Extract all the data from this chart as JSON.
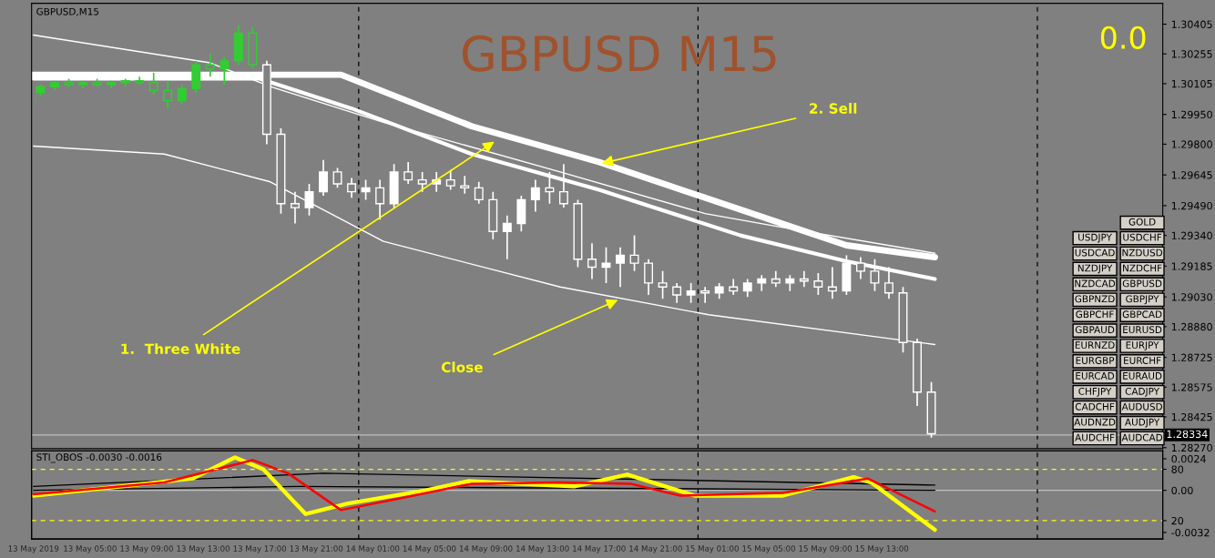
{
  "chart_data": [
    {
      "type": "candlestick",
      "title": "GBPUSD M15",
      "subtitle": "GBPUSD,M15",
      "x": [
        "2019-05-13T01:30",
        "2019-05-13T02:30",
        "2019-05-13T03:30",
        "2019-05-13T04:30",
        "2019-05-13T05:30",
        "2019-05-13T06:30",
        "2019-05-13T07:30",
        "2019-05-13T08:30",
        "2019-05-13T09:30",
        "2019-05-13T10:30",
        "2019-05-13T11:30",
        "2019-05-13T12:30",
        "2019-05-13T13:30",
        "2019-05-13T14:30",
        "2019-05-13T15:30",
        "2019-05-13T16:30",
        "2019-05-13T17:30",
        "2019-05-13T18:30",
        "2019-05-13T19:30",
        "2019-05-13T20:30",
        "2019-05-13T21:30",
        "2019-05-13T22:30",
        "2019-05-13T23:30",
        "2019-05-14T00:30",
        "2019-05-14T01:30",
        "2019-05-14T02:30",
        "2019-05-14T03:30",
        "2019-05-14T04:30",
        "2019-05-14T05:30",
        "2019-05-14T06:30",
        "2019-05-14T07:30",
        "2019-05-14T08:30",
        "2019-05-14T09:30",
        "2019-05-14T10:30",
        "2019-05-14T11:30",
        "2019-05-14T12:30",
        "2019-05-14T13:30",
        "2019-05-14T14:30",
        "2019-05-14T15:30",
        "2019-05-14T16:30",
        "2019-05-14T17:30",
        "2019-05-14T18:30",
        "2019-05-14T19:30",
        "2019-05-14T20:30",
        "2019-05-14T21:30",
        "2019-05-14T22:30",
        "2019-05-14T23:30",
        "2019-05-15T00:30",
        "2019-05-15T01:30",
        "2019-05-15T02:30",
        "2019-05-15T03:30",
        "2019-05-15T04:30",
        "2019-05-15T05:30",
        "2019-05-15T06:30",
        "2019-05-15T07:30",
        "2019-05-15T08:30",
        "2019-05-15T09:30",
        "2019-05-15T10:30",
        "2019-05-15T11:30",
        "2019-05-15T12:30",
        "2019-05-15T13:30",
        "2019-05-15T14:30",
        "2019-05-15T15:30",
        "2019-05-15T16:30"
      ],
      "ohlc": [
        [
          1.3006,
          1.301,
          1.3004,
          1.3009
        ],
        [
          1.3009,
          1.3012,
          1.3007,
          1.3011
        ],
        [
          1.3011,
          1.3013,
          1.3009,
          1.301
        ],
        [
          1.301,
          1.3012,
          1.3008,
          1.3011
        ],
        [
          1.3011,
          1.3013,
          1.3009,
          1.301
        ],
        [
          1.301,
          1.3012,
          1.3008,
          1.3011
        ],
        [
          1.3011,
          1.3013,
          1.3009,
          1.3012
        ],
        [
          1.3012,
          1.3014,
          1.301,
          1.3011
        ],
        [
          1.3011,
          1.3016,
          1.3005,
          1.3007
        ],
        [
          1.3007,
          1.3012,
          1.2998,
          1.3002
        ],
        [
          1.3002,
          1.301,
          1.3,
          1.3008
        ],
        [
          1.3008,
          1.3022,
          1.3006,
          1.302
        ],
        [
          1.302,
          1.3026,
          1.3014,
          1.3018
        ],
        [
          1.3018,
          1.3024,
          1.301,
          1.3022
        ],
        [
          1.3022,
          1.304,
          1.302,
          1.3036
        ],
        [
          1.3036,
          1.3039,
          1.3018,
          1.302
        ],
        [
          1.302,
          1.3022,
          1.298,
          1.2985
        ],
        [
          1.2985,
          1.2988,
          1.2945,
          1.295
        ],
        [
          1.295,
          1.2956,
          1.294,
          1.2948
        ],
        [
          1.2948,
          1.296,
          1.2944,
          1.2956
        ],
        [
          1.2956,
          1.2972,
          1.2954,
          1.2966
        ],
        [
          1.2966,
          1.2968,
          1.2958,
          1.296
        ],
        [
          1.296,
          1.2963,
          1.2953,
          1.2956
        ],
        [
          1.2956,
          1.2962,
          1.2952,
          1.2958
        ],
        [
          1.2958,
          1.2962,
          1.2942,
          1.295
        ],
        [
          1.295,
          1.297,
          1.2948,
          1.2966
        ],
        [
          1.2966,
          1.2971,
          1.296,
          1.2962
        ],
        [
          1.2962,
          1.2966,
          1.2956,
          1.296
        ],
        [
          1.296,
          1.2966,
          1.2956,
          1.2962
        ],
        [
          1.2962,
          1.2967,
          1.2957,
          1.2959
        ],
        [
          1.2959,
          1.2964,
          1.2955,
          1.2958
        ],
        [
          1.2958,
          1.2961,
          1.295,
          1.2952
        ],
        [
          1.2952,
          1.2956,
          1.2932,
          1.2936
        ],
        [
          1.2936,
          1.2944,
          1.2922,
          1.294
        ],
        [
          1.294,
          1.2954,
          1.2936,
          1.2952
        ],
        [
          1.2952,
          1.2962,
          1.2946,
          1.2958
        ],
        [
          1.2958,
          1.2966,
          1.295,
          1.2956
        ],
        [
          1.2956,
          1.297,
          1.2948,
          1.295
        ],
        [
          1.295,
          1.2952,
          1.2918,
          1.2922
        ],
        [
          1.2922,
          1.293,
          1.2912,
          1.2918
        ],
        [
          1.2918,
          1.2928,
          1.291,
          1.292
        ],
        [
          1.292,
          1.2928,
          1.2908,
          1.2924
        ],
        [
          1.2924,
          1.2934,
          1.2916,
          1.292
        ],
        [
          1.292,
          1.2922,
          1.2904,
          1.291
        ],
        [
          1.291,
          1.2916,
          1.2902,
          1.2908
        ],
        [
          1.2908,
          1.291,
          1.29,
          1.2904
        ],
        [
          1.2904,
          1.291,
          1.29,
          1.2906
        ],
        [
          1.2906,
          1.2908,
          1.29,
          1.2905
        ],
        [
          1.2905,
          1.291,
          1.2902,
          1.2908
        ],
        [
          1.2908,
          1.2912,
          1.2904,
          1.2906
        ],
        [
          1.2906,
          1.2912,
          1.2903,
          1.291
        ],
        [
          1.291,
          1.2914,
          1.2906,
          1.2912
        ],
        [
          1.2912,
          1.2916,
          1.2908,
          1.291
        ],
        [
          1.291,
          1.2914,
          1.2906,
          1.2912
        ],
        [
          1.2912,
          1.2916,
          1.2908,
          1.2911
        ],
        [
          1.2911,
          1.2915,
          1.2904,
          1.2908
        ],
        [
          1.2908,
          1.2918,
          1.2902,
          1.2906
        ],
        [
          1.2906,
          1.2924,
          1.2904,
          1.292
        ],
        [
          1.292,
          1.2923,
          1.2912,
          1.2916
        ],
        [
          1.2916,
          1.2922,
          1.2906,
          1.291
        ],
        [
          1.291,
          1.2918,
          1.2902,
          1.2905
        ],
        [
          1.2905,
          1.2908,
          1.2875,
          1.288
        ],
        [
          1.288,
          1.2882,
          1.2848,
          1.2855
        ],
        [
          1.2855,
          1.286,
          1.2832,
          1.2834
        ]
      ],
      "colors": [
        "#32cd32",
        "#32cd32",
        "#32cd32",
        "#32cd32",
        "#32cd32",
        "#32cd32",
        "#32cd32",
        "#32cd32",
        "#32cd32",
        "#32cd32",
        "#32cd32",
        "#32cd32",
        "#32cd32",
        "#32cd32",
        "#32cd32",
        "#32cd32",
        "#ffffff",
        "#ffffff",
        "#ffffff",
        "#ffffff",
        "#ffffff",
        "#ffffff",
        "#ffffff",
        "#ffffff",
        "#ffffff",
        "#ffffff",
        "#ffffff",
        "#ffffff",
        "#ffffff",
        "#ffffff",
        "#ffffff",
        "#ffffff",
        "#ffffff",
        "#ffffff",
        "#ffffff",
        "#ffffff",
        "#ffffff",
        "#ffffff",
        "#ffffff",
        "#ffffff",
        "#ffffff",
        "#ffffff",
        "#ffffff",
        "#ffffff",
        "#ffffff",
        "#ffffff",
        "#ffffff",
        "#ffffff",
        "#ffffff",
        "#ffffff",
        "#ffffff",
        "#ffffff",
        "#ffffff",
        "#ffffff",
        "#ffffff",
        "#ffffff",
        "#ffffff",
        "#ffffff",
        "#ffffff",
        "#ffffff",
        "#ffffff",
        "#ffffff",
        "#ffffff",
        "#ffffff"
      ],
      "series": [
        {
          "type": "line",
          "color": "#ffffff",
          "x": [
            "2019-05-13T01:00",
            "2019-05-13T22:45",
            "2019-05-14T08:00",
            "2019-05-14T17:00",
            "2019-05-15T03:00",
            "2019-05-15T10:30",
            "2019-05-15T16:45"
          ],
          "values": [
            1.3015,
            1.3015,
            1.2989,
            1.2971,
            1.2947,
            1.2929,
            1.2923
          ]
        },
        {
          "type": "line",
          "color": "#ffffff",
          "x": [
            "2019-05-13T01:00",
            "2019-05-13T17:00",
            "2019-05-13T23:30",
            "2019-05-14T08:00",
            "2019-05-14T17:00",
            "2019-05-15T03:00",
            "2019-05-15T10:30",
            "2019-05-15T16:45"
          ],
          "values": [
            1.3013,
            1.3013,
            1.2998,
            1.2975,
            1.2957,
            1.2934,
            1.2921,
            1.2912
          ]
        },
        {
          "type": "line",
          "color": "#ffffff",
          "x": [
            "2019-05-13T01:00",
            "2019-05-13T13:30",
            "2019-05-13T17:45",
            "2019-05-14T01:45",
            "2019-05-14T14:15",
            "2019-05-15T00:30",
            "2019-05-15T06:00",
            "2019-05-15T16:45"
          ],
          "values": [
            1.3035,
            1.3021,
            1.3009,
            1.2991,
            1.2966,
            1.2945,
            1.2938,
            1.2925
          ]
        },
        {
          "type": "line",
          "color": "#ffffff",
          "x": [
            "2019-05-13T01:00",
            "2019-05-13T10:15",
            "2019-05-13T17:45",
            "2019-05-14T01:45",
            "2019-05-14T14:15",
            "2019-05-15T00:45",
            "2019-05-15T16:45"
          ],
          "values": [
            1.2979,
            1.2975,
            1.2961,
            1.2931,
            1.2908,
            1.2894,
            1.2879
          ]
        }
      ],
      "xlim": [
        "2019-05-13T00:52",
        "2019-05-16T08:52"
      ],
      "ylim": [
        1.28265,
        1.3051
      ],
      "yticks": [
        {
          "value": 1.30405,
          "label": "1.30405"
        },
        {
          "value": 1.30255,
          "label": "1.30255"
        },
        {
          "value": 1.30105,
          "label": "1.30105"
        },
        {
          "value": 1.2995,
          "label": "1.29950"
        },
        {
          "value": 1.298,
          "label": "1.29800"
        },
        {
          "value": 1.29645,
          "label": "1.29645"
        },
        {
          "value": 1.2949,
          "label": "1.29490"
        },
        {
          "value": 1.2934,
          "label": "1.29340"
        },
        {
          "value": 1.29185,
          "label": "1.29185"
        },
        {
          "value": 1.2903,
          "label": "1.29030"
        },
        {
          "value": 1.2888,
          "label": "1.28880"
        },
        {
          "value": 1.28725,
          "label": "1.28725"
        },
        {
          "value": 1.28575,
          "label": "1.28575"
        },
        {
          "value": 1.28425,
          "label": "1.28425"
        },
        {
          "value": 1.2827,
          "label": "1.28270"
        }
      ],
      "tick_labels": "y",
      "ref_lines": [
        {
          "axis": "x",
          "value": "2019-05-14T00:00",
          "color": "#000000",
          "line_style": "dashed"
        },
        {
          "axis": "x",
          "value": "2019-05-15T00:00",
          "color": "#000000",
          "line_style": "dashed"
        },
        {
          "axis": "x",
          "value": "2019-05-16T00:00",
          "color": "#000000",
          "line_style": "dashed"
        },
        {
          "axis": "y",
          "value": 1.28334,
          "label": "1.28334",
          "color": "#c0c0c0"
        }
      ],
      "annotations": [
        "0.0",
        {
          "text": "2. Sell",
          "x": "2019-05-14T17:00",
          "y": 1.297
        },
        {
          "text": "1.  Three White",
          "x": "2019-05-14T09:45",
          "y": 1.2982
        },
        {
          "text": "Close",
          "x": "2019-05-14T18:30",
          "y": 1.2902
        }
      ]
    },
    {
      "type": "line",
      "title": "STI_OBOS -0.0030 -0.0016",
      "series": [
        {
          "color": "#000000",
          "x": [
            "2019-05-13T01:00",
            "2019-05-13T21:30",
            "2019-05-15T16:45"
          ],
          "values": [
            0.0003,
            0.0013,
            0.0004
          ]
        },
        {
          "color": "#000000",
          "x": [
            "2019-05-13T01:00",
            "2019-05-13T19:45",
            "2019-05-15T16:45"
          ],
          "values": [
            0.0,
            0.0003,
            0.0
          ]
        },
        {
          "color": "#ffff00",
          "x": [
            "2019-05-13T01:00",
            "2019-05-13T07:15",
            "2019-05-13T12:15",
            "2019-05-13T15:15",
            "2019-05-13T17:15",
            "2019-05-13T20:15",
            "2019-05-13T23:15",
            "2019-05-14T04:45",
            "2019-05-14T07:45",
            "2019-05-14T11:30",
            "2019-05-14T15:15",
            "2019-05-14T19:00",
            "2019-05-14T23:45",
            "2019-05-15T06:00",
            "2019-05-15T11:00",
            "2019-05-15T12:15",
            "2019-05-15T16:45"
          ],
          "values": [
            -0.0004,
            0.0003,
            0.0009,
            0.0025,
            0.0016,
            -0.0018,
            -0.001,
            0.0,
            0.0007,
            0.0005,
            0.0003,
            0.0012,
            -0.0004,
            -0.0004,
            0.001,
            0.0006,
            -0.003
          ]
        },
        {
          "color": "#ff0000",
          "x": [
            "2019-05-13T01:00",
            "2019-05-13T10:15",
            "2019-05-13T16:30",
            "2019-05-13T19:00",
            "2019-05-13T22:45",
            "2019-05-14T03:00",
            "2019-05-14T08:00",
            "2019-05-14T14:15",
            "2019-05-14T19:15",
            "2019-05-14T22:45",
            "2019-05-15T06:00",
            "2019-05-15T12:00",
            "2019-05-15T16:45"
          ],
          "values": [
            -0.0003,
            0.0006,
            0.0023,
            0.0013,
            -0.0015,
            -0.0006,
            0.0005,
            0.0006,
            0.0005,
            -0.0004,
            -0.0002,
            0.0009,
            -0.0016
          ]
        }
      ],
      "xlim": [
        "2019-05-13T00:52",
        "2019-05-16T08:52"
      ],
      "xticks": [
        {
          "value": "2019-05-13T01:00",
          "label": "13 May 2019"
        },
        {
          "value": "2019-05-13T05:00",
          "label": "13 May 05:00"
        },
        {
          "value": "2019-05-13T09:00",
          "label": "13 May 09:00"
        },
        {
          "value": "2019-05-13T13:00",
          "label": "13 May 13:00"
        },
        {
          "value": "2019-05-13T17:00",
          "label": "13 May 17:00"
        },
        {
          "value": "2019-05-13T21:00",
          "label": "13 May 21:00"
        },
        {
          "value": "2019-05-14T01:00",
          "label": "14 May 01:00"
        },
        {
          "value": "2019-05-14T05:00",
          "label": "14 May 05:00"
        },
        {
          "value": "2019-05-14T09:00",
          "label": "14 May 09:00"
        },
        {
          "value": "2019-05-14T13:00",
          "label": "14 May 13:00"
        },
        {
          "value": "2019-05-14T17:00",
          "label": "14 May 17:00"
        },
        {
          "value": "2019-05-14T21:00",
          "label": "14 May 21:00"
        },
        {
          "value": "2019-05-15T01:00",
          "label": "15 May 01:00"
        },
        {
          "value": "2019-05-15T05:00",
          "label": "15 May 05:00"
        },
        {
          "value": "2019-05-15T09:00",
          "label": "15 May 09:00"
        },
        {
          "value": "2019-05-15T13:00",
          "label": "15 May 13:00"
        }
      ],
      "ylim": [
        -0.0037,
        0.003
      ],
      "yticks": [
        0.0024,
        {
          "value": 0,
          "label": "0.00"
        },
        -0.0032
      ],
      "y2lim": [
        -1.5,
        101.5
      ],
      "y2ticks": [
        80,
        20
      ],
      "ref_lines": [
        {
          "axis": "y2",
          "value": 80,
          "color": "#ffff00",
          "line_style": "dashed"
        },
        {
          "axis": "y2",
          "value": 20,
          "color": "#ffff00",
          "line_style": "dashed"
        },
        {
          "axis": "y",
          "value": 0,
          "color": "#c0c0c0"
        },
        {
          "axis": "x",
          "value": "2019-05-14T00:00",
          "color": "#000000",
          "line_style": "dashed"
        },
        {
          "axis": "x",
          "value": "2019-05-15T00:00",
          "color": "#000000",
          "line_style": "dashed"
        },
        {
          "axis": "x",
          "value": "2019-05-16T00:00",
          "color": "#000000",
          "line_style": "dashed"
        }
      ]
    },
    {
      "type": "other",
      "annotations": [
        "GOLD",
        "USDJPY",
        "USDCHF",
        "USDCAD",
        "NZDUSD",
        "NZDJPY",
        "NZDCHF",
        "NZDCAD",
        "GBPUSD",
        "GBPNZD",
        "GBPJPY",
        "GBPCHF",
        "GBPCAD",
        "GBPAUD",
        "EURUSD",
        "EURNZD",
        "EURJPY",
        "EURGBP",
        "EURCHF",
        "EURCAD",
        "EURAUD",
        "CHFJPY",
        "CADJPY",
        "CADCHF",
        "AUDUSD",
        "AUDNZD",
        "AUDJPY",
        "AUDCHF",
        "AUDCAD"
      ]
    }
  ]
}
